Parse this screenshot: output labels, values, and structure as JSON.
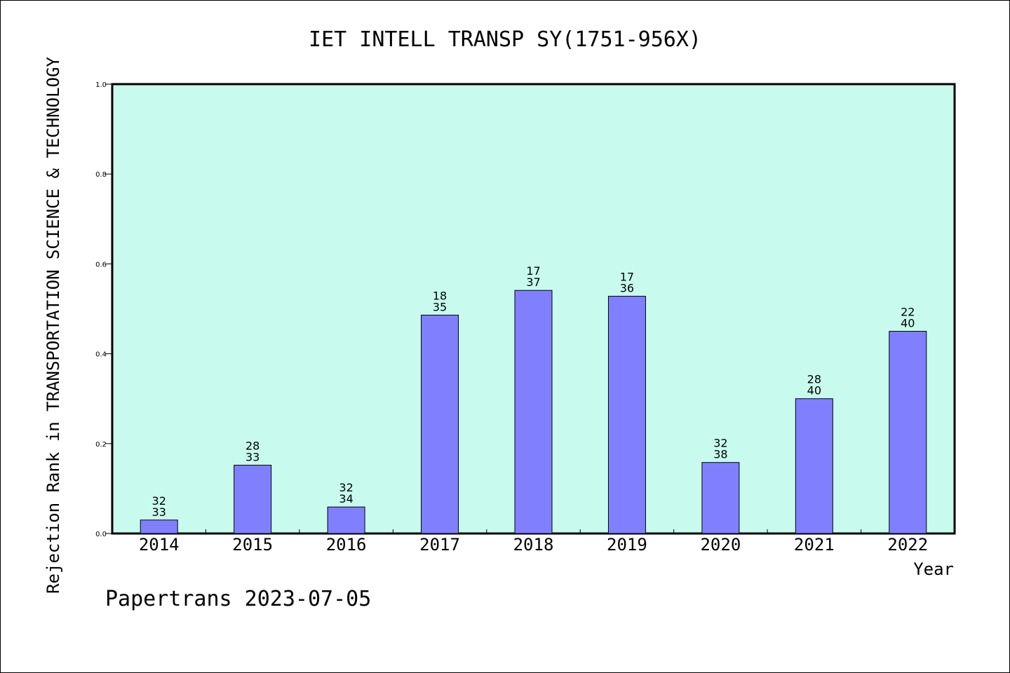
{
  "chart_data": {
    "type": "bar",
    "title": "IET INTELL TRANSP SY(1751-956X)",
    "ylabel": "Rejection Rank in TRANSPORTATION SCIENCE & TECHNOLOGY",
    "xlabel": "Year",
    "footer": "Papertrans 2023-07-05",
    "ylim": [
      0,
      1.0
    ],
    "yticks": [
      "0.0",
      "0.2",
      "0.4",
      "0.6",
      "0.8",
      "1.0"
    ],
    "categories": [
      "2014",
      "2015",
      "2016",
      "2017",
      "2018",
      "2019",
      "2020",
      "2021",
      "2022"
    ],
    "values": [
      0.03,
      0.152,
      0.059,
      0.486,
      0.541,
      0.528,
      0.158,
      0.3,
      0.45
    ],
    "labels_top": [
      "32",
      "28",
      "32",
      "18",
      "17",
      "17",
      "32",
      "28",
      "22"
    ],
    "labels_bottom": [
      "33",
      "33",
      "34",
      "35",
      "37",
      "36",
      "38",
      "40",
      "40"
    ],
    "colors": {
      "plot_background": "#c8fbee",
      "bar_fill": "#8080ff",
      "bar_stroke": "#000000"
    },
    "grid": false,
    "legend": "none"
  }
}
